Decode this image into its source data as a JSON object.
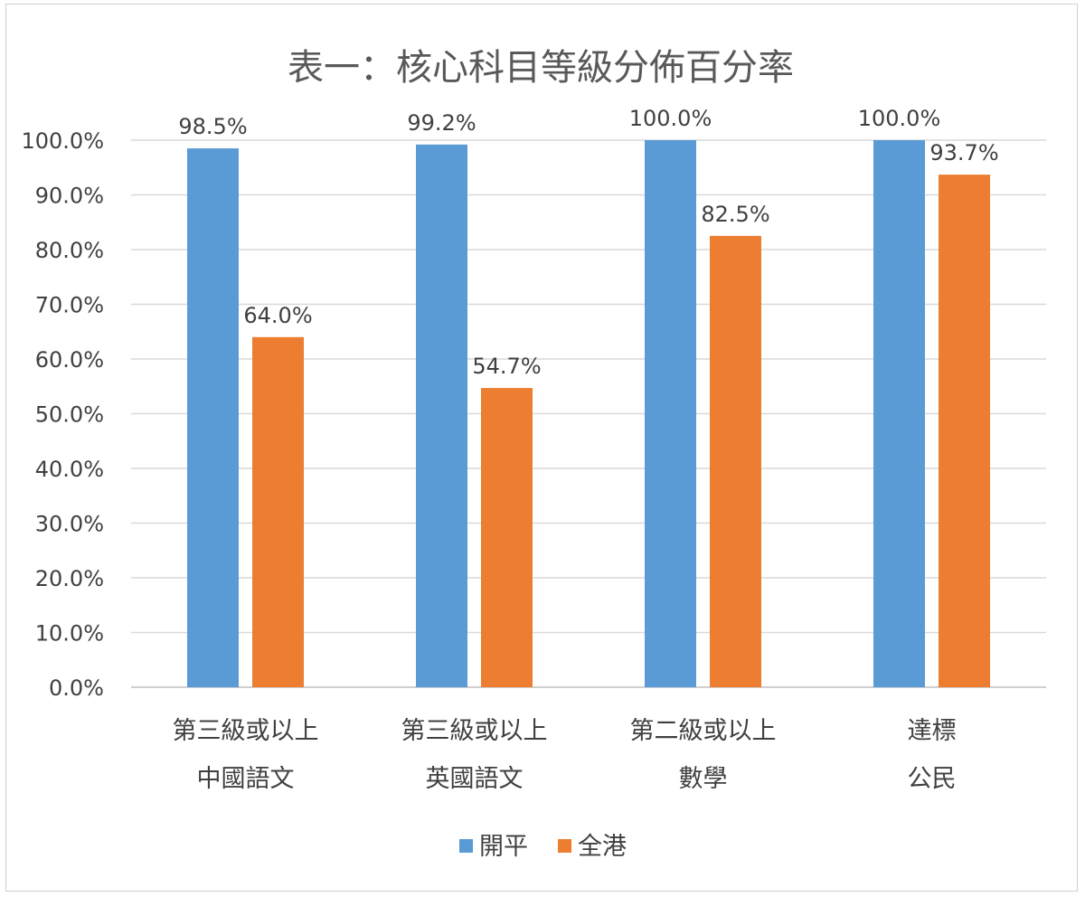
{
  "chart_data": {
    "type": "bar",
    "title": "表一：核心科目等級分佈百分率",
    "categories": [
      [
        "第三級或以上",
        "中國語文"
      ],
      [
        "第三級或以上",
        "英國語文"
      ],
      [
        "第二級或以上",
        "數學"
      ],
      [
        "達標",
        "公民"
      ]
    ],
    "series": [
      {
        "name": "開平",
        "color": "#5B9BD5",
        "values": [
          98.5,
          99.2,
          100.0,
          100.0
        ],
        "labels": [
          "98.5%",
          "99.2%",
          "100.0%",
          "100.0%"
        ]
      },
      {
        "name": "全港",
        "color": "#ED7D31",
        "values": [
          64.0,
          54.7,
          82.5,
          93.7
        ],
        "labels": [
          "64.0%",
          "54.7%",
          "82.5%",
          "93.7%"
        ]
      }
    ],
    "ylim": [
      0,
      100
    ],
    "yticks": [
      "0.0%",
      "10.0%",
      "20.0%",
      "30.0%",
      "40.0%",
      "50.0%",
      "60.0%",
      "70.0%",
      "80.0%",
      "90.0%",
      "100.0%"
    ],
    "grid": true,
    "legend_position": "bottom"
  }
}
